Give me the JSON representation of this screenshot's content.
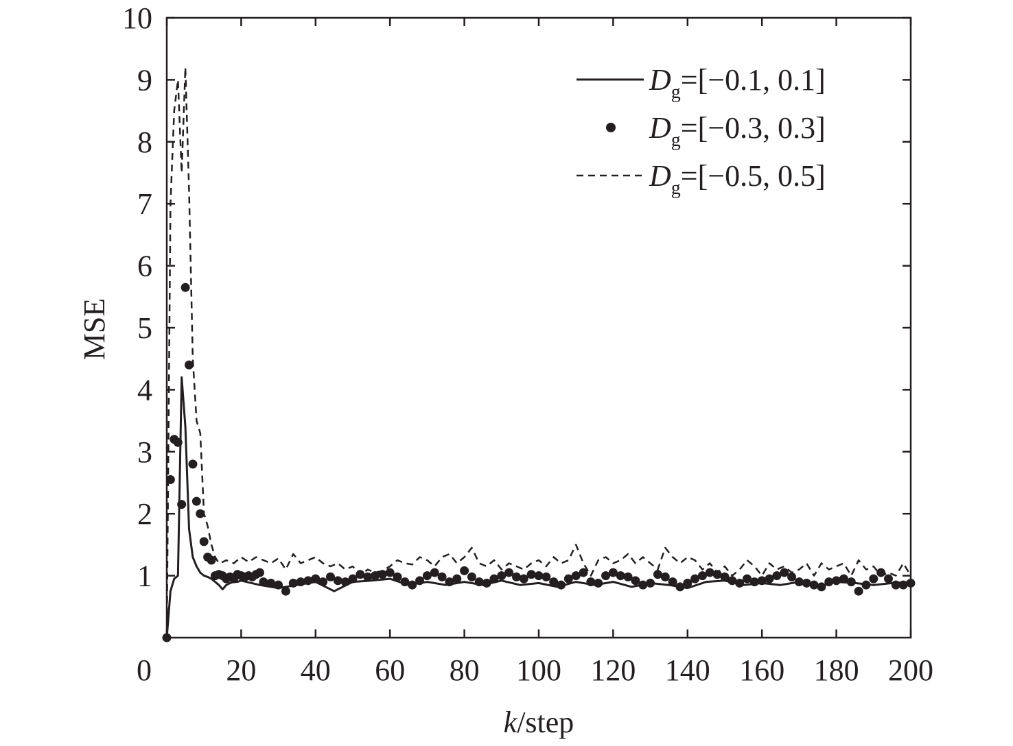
{
  "chart_data": {
    "type": "line",
    "title": "",
    "xlabel_var": "k",
    "xlabel_unit": "/step",
    "ylabel": "MSE",
    "xlim": [
      0,
      200
    ],
    "ylim": [
      0,
      10
    ],
    "xticks": [
      0,
      20,
      40,
      60,
      80,
      100,
      120,
      140,
      160,
      180,
      200
    ],
    "yticks": [
      1,
      2,
      3,
      4,
      5,
      6,
      7,
      8,
      9,
      10
    ],
    "grid": false,
    "legend_position": "top-right",
    "colors": {
      "ink": "#231f20"
    },
    "series": [
      {
        "name_var": "D",
        "name_sub": "g",
        "name_rest": "=[−0.1, 0.1]",
        "style": "solid",
        "x": [
          0,
          1,
          2,
          3,
          4,
          5,
          6,
          7,
          8,
          9,
          10,
          11,
          12,
          13,
          14,
          15,
          16,
          17,
          18,
          19,
          20,
          25,
          30,
          35,
          40,
          45,
          50,
          55,
          60,
          65,
          70,
          75,
          80,
          85,
          90,
          95,
          100,
          105,
          110,
          115,
          120,
          125,
          130,
          135,
          140,
          145,
          150,
          155,
          160,
          165,
          170,
          175,
          180,
          185,
          190,
          195,
          200
        ],
        "values": [
          0,
          0.75,
          0.95,
          1.0,
          4.2,
          3.4,
          1.75,
          1.3,
          1.15,
          1.05,
          1.0,
          0.98,
          0.95,
          0.9,
          0.85,
          0.78,
          0.85,
          0.88,
          0.9,
          0.9,
          0.92,
          0.85,
          0.8,
          0.85,
          0.9,
          0.75,
          0.9,
          0.92,
          0.95,
          0.85,
          0.9,
          0.85,
          0.9,
          0.85,
          0.92,
          0.85,
          0.88,
          0.82,
          0.9,
          0.85,
          0.9,
          0.82,
          0.88,
          0.85,
          0.8,
          0.9,
          0.92,
          0.85,
          0.88,
          0.85,
          0.9,
          0.82,
          0.9,
          0.88,
          0.85,
          0.88,
          0.9
        ]
      },
      {
        "name_var": "D",
        "name_sub": "g",
        "name_rest": "=[−0.3, 0.3]",
        "style": "dots",
        "x": [
          0,
          1,
          2,
          3,
          4,
          5,
          6,
          7,
          8,
          9,
          10,
          11,
          12,
          13,
          14,
          15,
          16,
          17,
          18,
          19,
          20,
          21,
          22,
          23,
          24,
          25,
          26,
          28,
          30,
          32,
          34,
          36,
          38,
          40,
          42,
          44,
          46,
          48,
          50,
          52,
          54,
          56,
          58,
          60,
          62,
          64,
          66,
          68,
          70,
          72,
          74,
          76,
          78,
          80,
          82,
          84,
          86,
          88,
          90,
          92,
          94,
          96,
          98,
          100,
          102,
          104,
          106,
          108,
          110,
          112,
          114,
          116,
          118,
          120,
          122,
          124,
          126,
          128,
          130,
          132,
          134,
          136,
          138,
          140,
          142,
          144,
          146,
          148,
          150,
          152,
          154,
          156,
          158,
          160,
          162,
          164,
          166,
          168,
          170,
          172,
          174,
          176,
          178,
          180,
          182,
          184,
          186,
          188,
          190,
          192,
          194,
          196,
          198,
          200
        ],
        "values": [
          0,
          2.55,
          3.2,
          3.15,
          2.15,
          5.65,
          4.4,
          2.8,
          2.2,
          2.0,
          1.55,
          1.3,
          1.25,
          1.0,
          1.02,
          1.0,
          0.95,
          0.98,
          0.95,
          1.02,
          1.0,
          0.98,
          1.0,
          0.98,
          1.02,
          1.05,
          0.9,
          0.88,
          0.85,
          0.75,
          0.88,
          0.9,
          0.92,
          0.95,
          0.9,
          0.98,
          0.92,
          0.9,
          0.95,
          1.02,
          0.98,
          1.0,
          1.02,
          1.05,
          0.98,
          0.9,
          0.85,
          0.92,
          1.0,
          1.05,
          0.98,
          0.9,
          0.95,
          1.08,
          0.98,
          0.9,
          0.88,
          0.95,
          1.0,
          1.05,
          0.98,
          0.95,
          1.02,
          1.0,
          0.98,
          0.9,
          0.85,
          0.95,
          1.0,
          1.05,
          0.9,
          0.88,
          1.0,
          1.05,
          1.0,
          0.98,
          0.92,
          0.85,
          0.88,
          1.02,
          0.98,
          0.9,
          0.82,
          0.88,
          0.95,
          1.0,
          1.05,
          1.02,
          0.98,
          0.92,
          0.88,
          0.95,
          0.9,
          0.92,
          0.95,
          1.0,
          1.05,
          0.98,
          0.9,
          0.88,
          0.85,
          0.82,
          0.9,
          0.92,
          0.95,
          0.9,
          0.75,
          0.85,
          0.95,
          1.05,
          0.95,
          0.85,
          0.85,
          0.88
        ]
      },
      {
        "name_var": "D",
        "name_sub": "g",
        "name_rest": "=[−0.5, 0.5]",
        "style": "dashed",
        "x": [
          0,
          1,
          2,
          3,
          4,
          5,
          6,
          7,
          8,
          9,
          10,
          11,
          12,
          13,
          14,
          15,
          16,
          18,
          20,
          22,
          24,
          26,
          28,
          30,
          32,
          34,
          36,
          38,
          40,
          42,
          44,
          46,
          48,
          50,
          52,
          54,
          56,
          58,
          60,
          62,
          64,
          66,
          68,
          70,
          72,
          74,
          76,
          78,
          80,
          82,
          84,
          86,
          88,
          90,
          92,
          94,
          96,
          98,
          100,
          102,
          104,
          106,
          108,
          110,
          112,
          114,
          116,
          118,
          120,
          122,
          124,
          126,
          128,
          130,
          132,
          134,
          136,
          138,
          140,
          142,
          144,
          146,
          148,
          150,
          152,
          154,
          156,
          158,
          160,
          162,
          164,
          166,
          168,
          170,
          172,
          174,
          176,
          178,
          180,
          182,
          184,
          186,
          188,
          190,
          192,
          194,
          196,
          198,
          200
        ],
        "values": [
          0,
          7.0,
          8.5,
          9.0,
          7.5,
          9.2,
          7.2,
          4.5,
          3.5,
          3.3,
          2.0,
          1.8,
          1.5,
          1.3,
          1.2,
          1.22,
          1.25,
          1.2,
          1.3,
          1.22,
          1.3,
          1.25,
          1.2,
          1.28,
          1.1,
          1.35,
          1.2,
          1.25,
          1.3,
          1.2,
          1.15,
          1.2,
          1.1,
          1.15,
          1.0,
          1.1,
          1.05,
          1.08,
          1.15,
          1.25,
          1.2,
          1.18,
          1.3,
          1.25,
          1.15,
          1.3,
          1.35,
          1.2,
          1.3,
          1.45,
          1.2,
          1.15,
          1.25,
          1.1,
          1.2,
          1.15,
          1.1,
          1.2,
          1.25,
          1.15,
          1.3,
          1.2,
          1.25,
          1.5,
          1.2,
          1.0,
          1.25,
          1.3,
          1.2,
          1.25,
          1.35,
          1.2,
          1.3,
          1.2,
          1.1,
          1.45,
          1.3,
          1.2,
          1.3,
          1.25,
          1.1,
          1.2,
          1.05,
          1.15,
          1.0,
          1.1,
          1.25,
          1.15,
          1.0,
          1.2,
          1.1,
          1.15,
          1.05,
          1.1,
          1.2,
          1.0,
          1.2,
          1.1,
          1.15,
          1.2,
          1.0,
          1.25,
          1.1,
          1.15,
          1.0,
          1.05,
          1.0,
          1.2,
          1.0
        ]
      }
    ]
  }
}
